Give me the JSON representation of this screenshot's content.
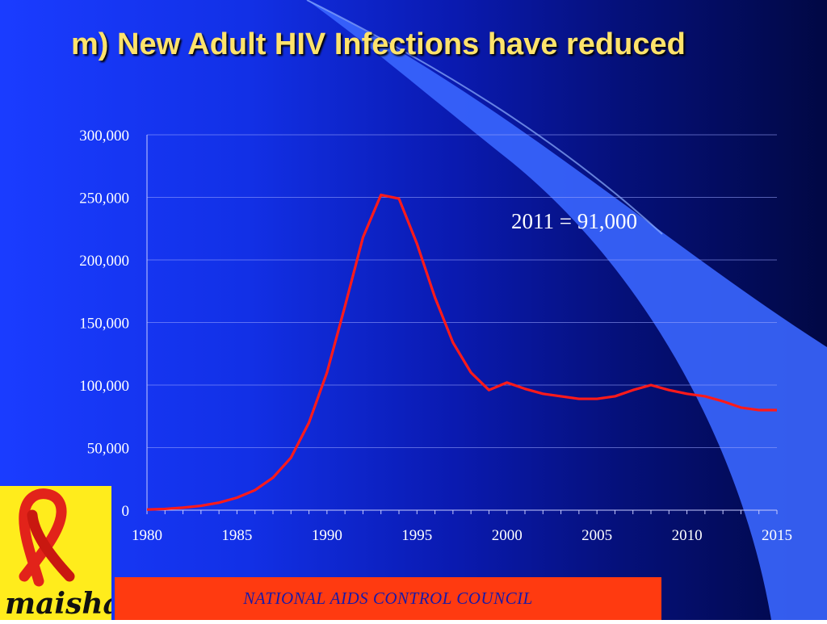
{
  "slide": {
    "title": "m)  New Adult HIV Infections have reduced",
    "footer": "NATIONAL AIDS CONTROL COUNCIL",
    "logo_text": "maisha!"
  },
  "colors": {
    "background_left": "#1a3cff",
    "background_right": "#010844",
    "title": "#ffe36b",
    "series_line": "#ff1a1a",
    "footer_bg": "#ff3a10",
    "footer_text": "#1a1aa8",
    "logo_bg": "#ffec1c",
    "ribbon": "#e2231a"
  },
  "chart_data": {
    "type": "line",
    "title": "",
    "xlabel": "",
    "ylabel": "",
    "xlim": [
      1980,
      2015
    ],
    "ylim": [
      0,
      300000
    ],
    "grid": true,
    "legend": "none",
    "x_ticks": [
      "1980",
      "1985",
      "1990",
      "1995",
      "2000",
      "2005",
      "2010",
      "2015"
    ],
    "y_ticks": [
      "0",
      "50,000",
      "100,000",
      "150,000",
      "200,000",
      "250,000",
      "300,000"
    ],
    "annotation": "2011 = 91,000",
    "series": [
      {
        "x": [
          1980,
          1981,
          1982,
          1983,
          1984,
          1985,
          1986,
          1987,
          1988,
          1989,
          1990,
          1991,
          1992,
          1993,
          1994,
          1995,
          1996,
          1997,
          1998,
          1999,
          2000,
          2001,
          2002,
          2003,
          2004,
          2005,
          2006,
          2007,
          2008,
          2009,
          2010,
          2011,
          2012,
          2013,
          2014,
          2015
        ],
        "values": [
          500,
          1000,
          2000,
          3500,
          6000,
          10000,
          16000,
          26000,
          42000,
          70000,
          110000,
          163000,
          218000,
          252000,
          249000,
          213000,
          170000,
          134000,
          110000,
          96000,
          102000,
          97000,
          93000,
          91000,
          89000,
          89000,
          91000,
          96000,
          100000,
          96000,
          93000,
          91000,
          87000,
          82000,
          80000,
          80000
        ]
      }
    ]
  }
}
